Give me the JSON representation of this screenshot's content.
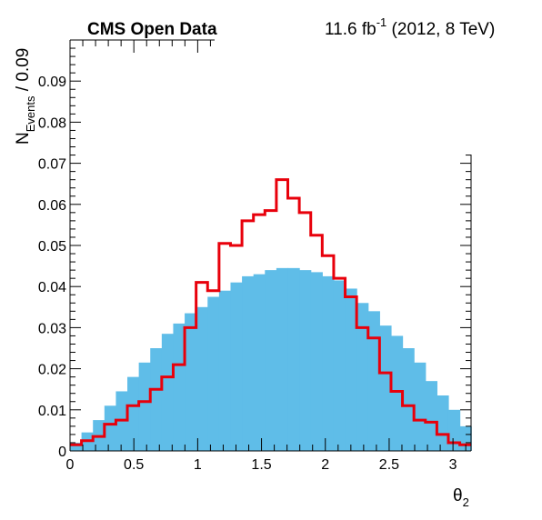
{
  "header": {
    "experiment": "CMS Open Data",
    "lumi_value": "11.6 fb",
    "lumi_exp": "-1",
    "lumi_tail": " (2012, 8 TeV)"
  },
  "chart_data": {
    "type": "histogram",
    "xlabel": "θ",
    "xlabel_sub": "2",
    "ylabel": "N",
    "ylabel_sub": "Events",
    "ylabel_tail": " / 0.09",
    "xlim": [
      0,
      3.14159
    ],
    "ylim": [
      0,
      0.1
    ],
    "x_ticks": [
      0,
      0.5,
      1,
      1.5,
      2,
      2.5,
      3
    ],
    "x_tick_labels": [
      "0",
      "0.5",
      "1",
      "1.5",
      "2",
      "2.5",
      "3"
    ],
    "y_ticks": [
      0,
      0.01,
      0.02,
      0.03,
      0.04,
      0.05,
      0.06,
      0.07,
      0.08,
      0.09
    ],
    "y_tick_labels": [
      "0",
      "0.01",
      "0.02",
      "0.03",
      "0.04",
      "0.05",
      "0.06",
      "0.07",
      "0.08",
      "0.09"
    ],
    "bin_width": 0.0898,
    "n_bins": 35,
    "series": [
      {
        "style": "filled",
        "color": "#5fbde8",
        "values": [
          0.002,
          0.0045,
          0.0075,
          0.011,
          0.0145,
          0.018,
          0.0215,
          0.025,
          0.0285,
          0.031,
          0.0335,
          0.035,
          0.0375,
          0.039,
          0.041,
          0.0425,
          0.043,
          0.044,
          0.0445,
          0.0445,
          0.044,
          0.0435,
          0.0425,
          0.0415,
          0.0395,
          0.036,
          0.034,
          0.0305,
          0.028,
          0.025,
          0.0215,
          0.017,
          0.0135,
          0.01,
          0.006
        ]
      },
      {
        "style": "step",
        "color": "#e8000b",
        "values": [
          0.0015,
          0.0025,
          0.0035,
          0.0065,
          0.0075,
          0.011,
          0.012,
          0.015,
          0.018,
          0.021,
          0.03,
          0.041,
          0.039,
          0.0505,
          0.05,
          0.056,
          0.0575,
          0.0585,
          0.066,
          0.0615,
          0.058,
          0.0525,
          0.0475,
          0.042,
          0.0375,
          0.03,
          0.0275,
          0.019,
          0.0145,
          0.011,
          0.0075,
          0.007,
          0.004,
          0.002,
          0.0015
        ]
      }
    ]
  }
}
